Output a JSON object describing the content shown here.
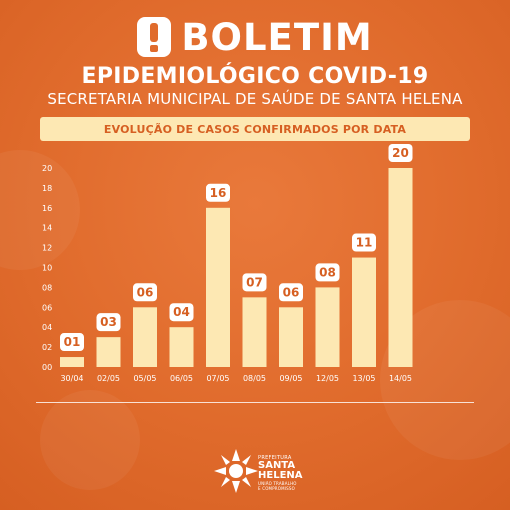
{
  "header": {
    "title": "BOLETIM",
    "subtitle": "EPIDEMIOLÓGICO COVID-19",
    "secretaria": "SECRETARIA MUNICIPAL DE SAÚDE DE SANTA HELENA",
    "banner": "EVOLUÇÃO DE CASOS CONFIRMADOS POR DATA"
  },
  "chart_data": {
    "type": "bar",
    "title": "EVOLUÇÃO DE CASOS CONFIRMADOS POR DATA",
    "categories": [
      "30/04",
      "02/05",
      "05/05",
      "06/05",
      "07/05",
      "08/05",
      "09/05",
      "12/05",
      "13/05",
      "14/05"
    ],
    "values": [
      1,
      3,
      6,
      4,
      16,
      7,
      6,
      8,
      11,
      20
    ],
    "data_labels": [
      "01",
      "03",
      "06",
      "04",
      "16",
      "07",
      "06",
      "08",
      "11",
      "20"
    ],
    "y_ticks": [
      "00",
      "02",
      "04",
      "06",
      "08",
      "10",
      "12",
      "14",
      "16",
      "18",
      "20"
    ],
    "ylim": [
      0,
      20
    ],
    "grid": false,
    "bar_color": "#fde8b3",
    "label_color": "#ffffff",
    "label_text_color": "#d65f22"
  },
  "logo": {
    "line1": "PREFEITURA",
    "line2a": "SANTA",
    "line2b": "HELENA",
    "line3a": "UNIÃO TRABALHO",
    "line3b": "E COMPROMISSO",
    "icon": "sun-burst-logo-icon"
  }
}
